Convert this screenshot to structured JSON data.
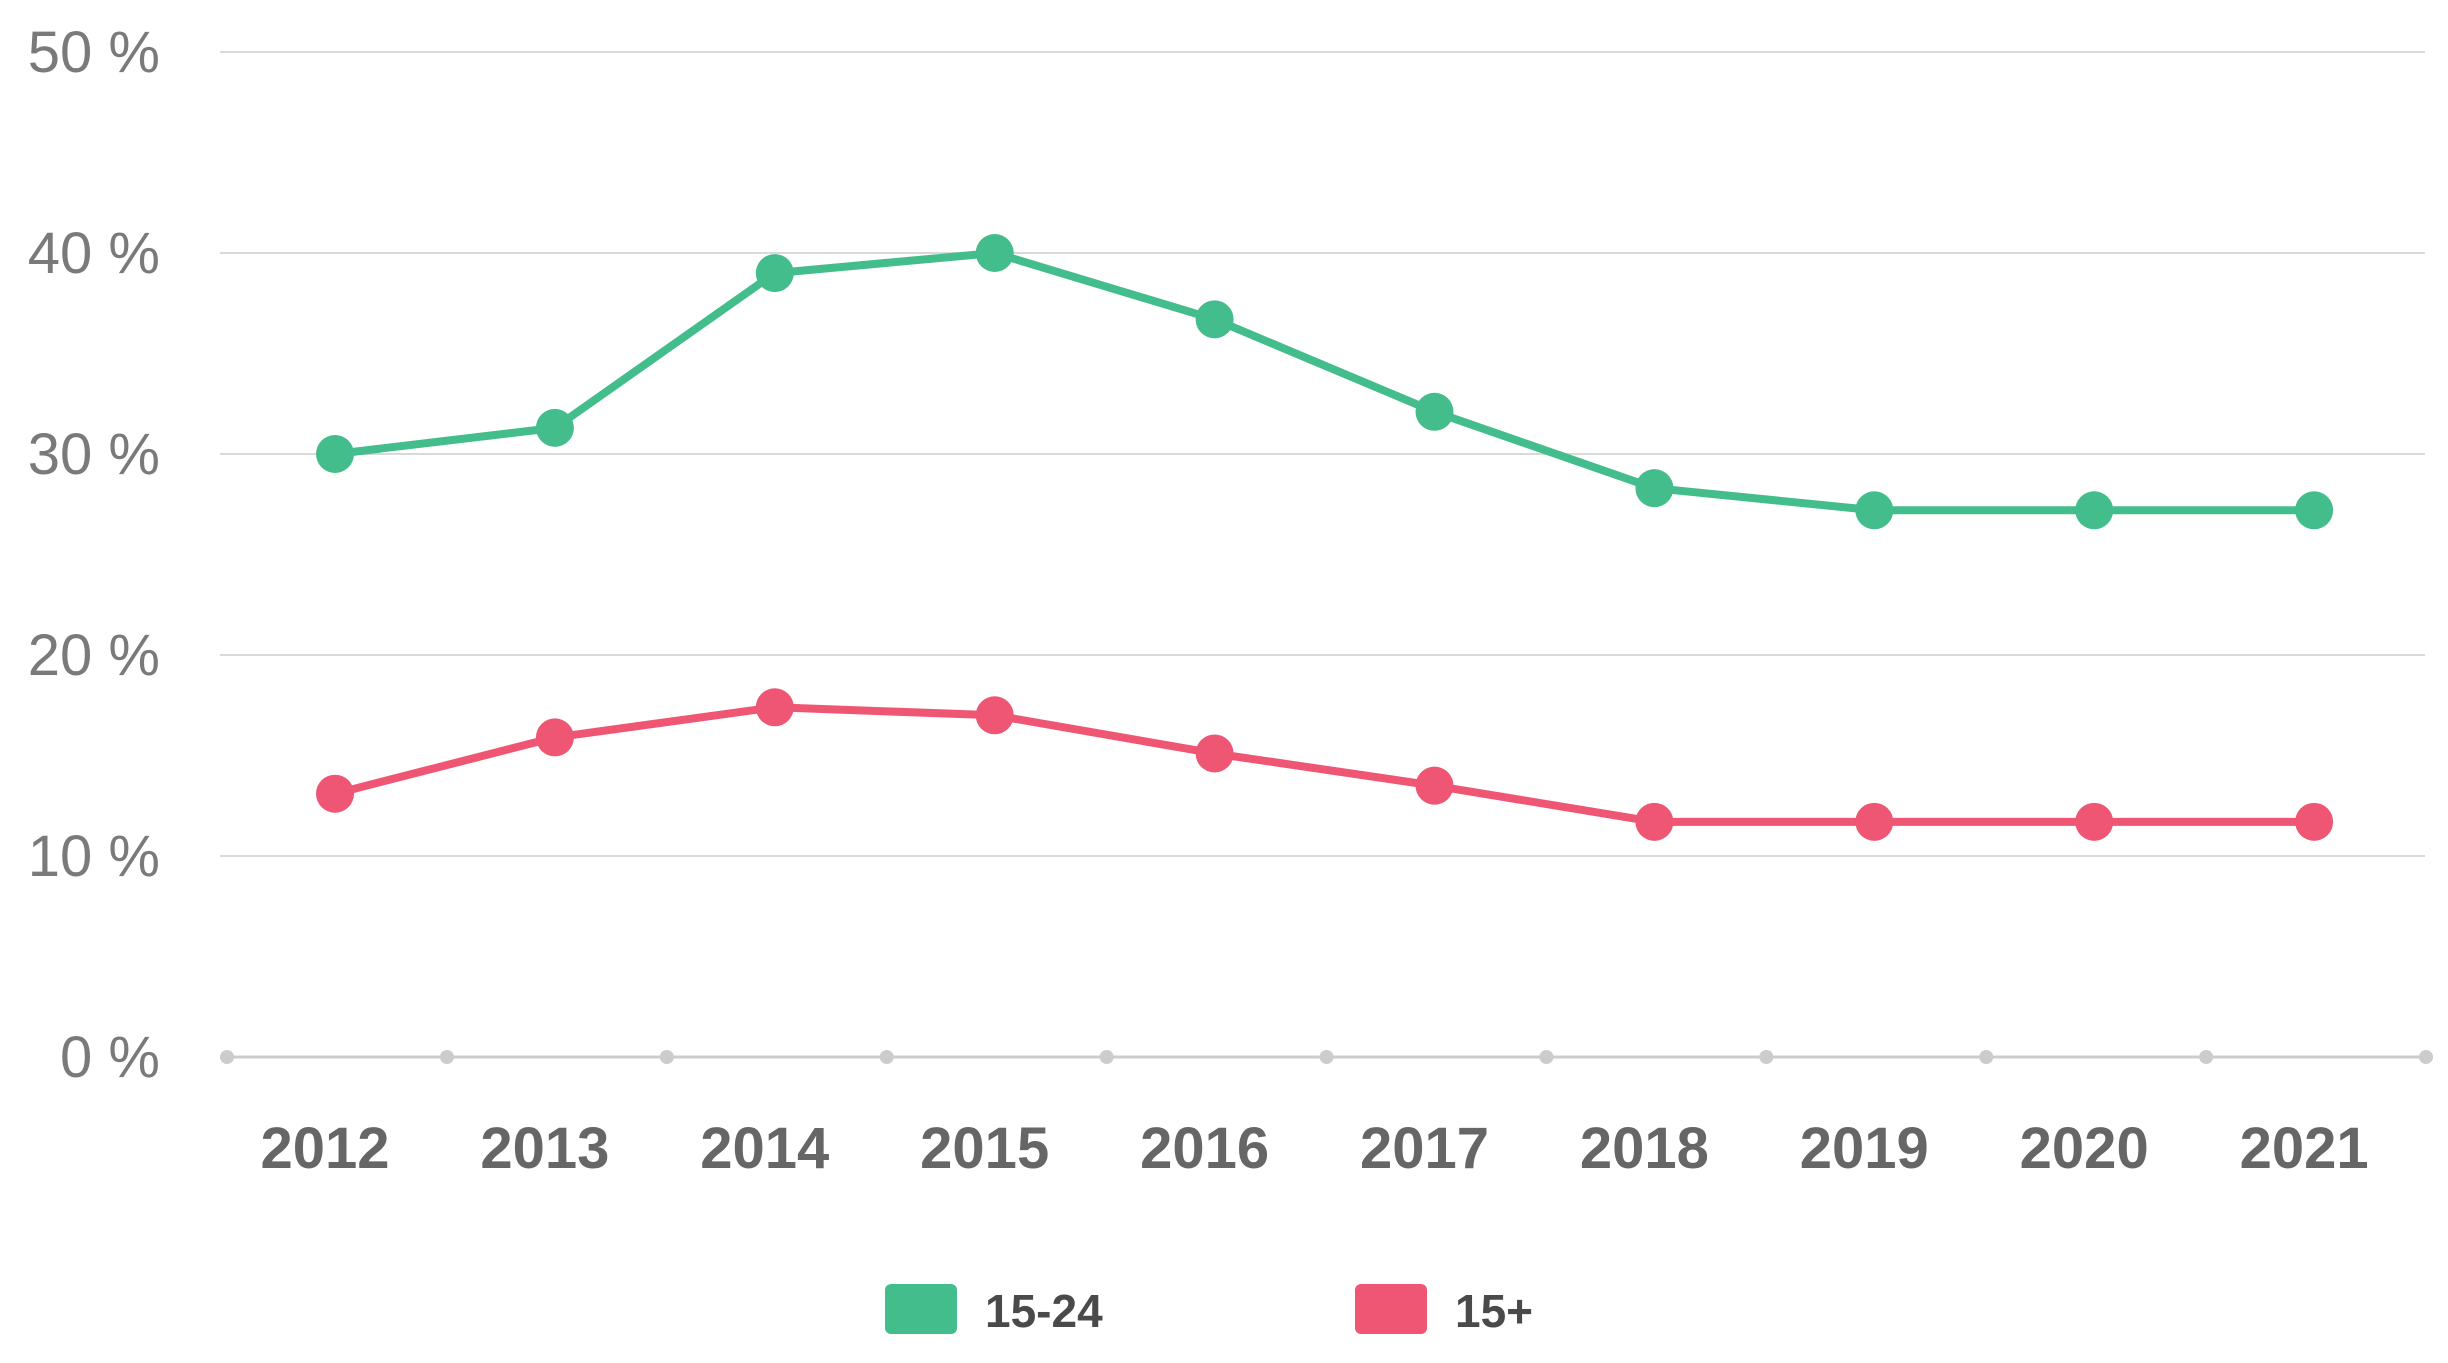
{
  "chart_data": {
    "type": "line",
    "categories": [
      "2012",
      "2013",
      "2014",
      "2015",
      "2016",
      "2017",
      "2018",
      "2019",
      "2020",
      "2021"
    ],
    "series": [
      {
        "name": "15-24",
        "color": "#44bd8c",
        "values": [
          30.0,
          31.3,
          39.0,
          40.0,
          36.7,
          32.1,
          28.3,
          27.2,
          27.2,
          27.2
        ]
      },
      {
        "name": "15+",
        "color": "#ef5673",
        "values": [
          13.1,
          15.9,
          17.4,
          17.0,
          15.1,
          13.5,
          11.7,
          11.7,
          11.7,
          11.7
        ]
      }
    ],
    "ylim": [
      0,
      50
    ],
    "yticks": [
      0,
      10,
      20,
      30,
      40,
      50
    ],
    "ytick_labels": [
      "0 %",
      "10 %",
      "20 %",
      "30 %",
      "40 %",
      "50 %"
    ],
    "title": "",
    "xlabel": "",
    "ylabel": "",
    "grid": true,
    "legend_position": "bottom-center",
    "colors": {
      "grid": "#d9d9d9",
      "axis": "#cccccc",
      "tick_text": "#7a7a7a",
      "category_text": "#666666"
    }
  }
}
